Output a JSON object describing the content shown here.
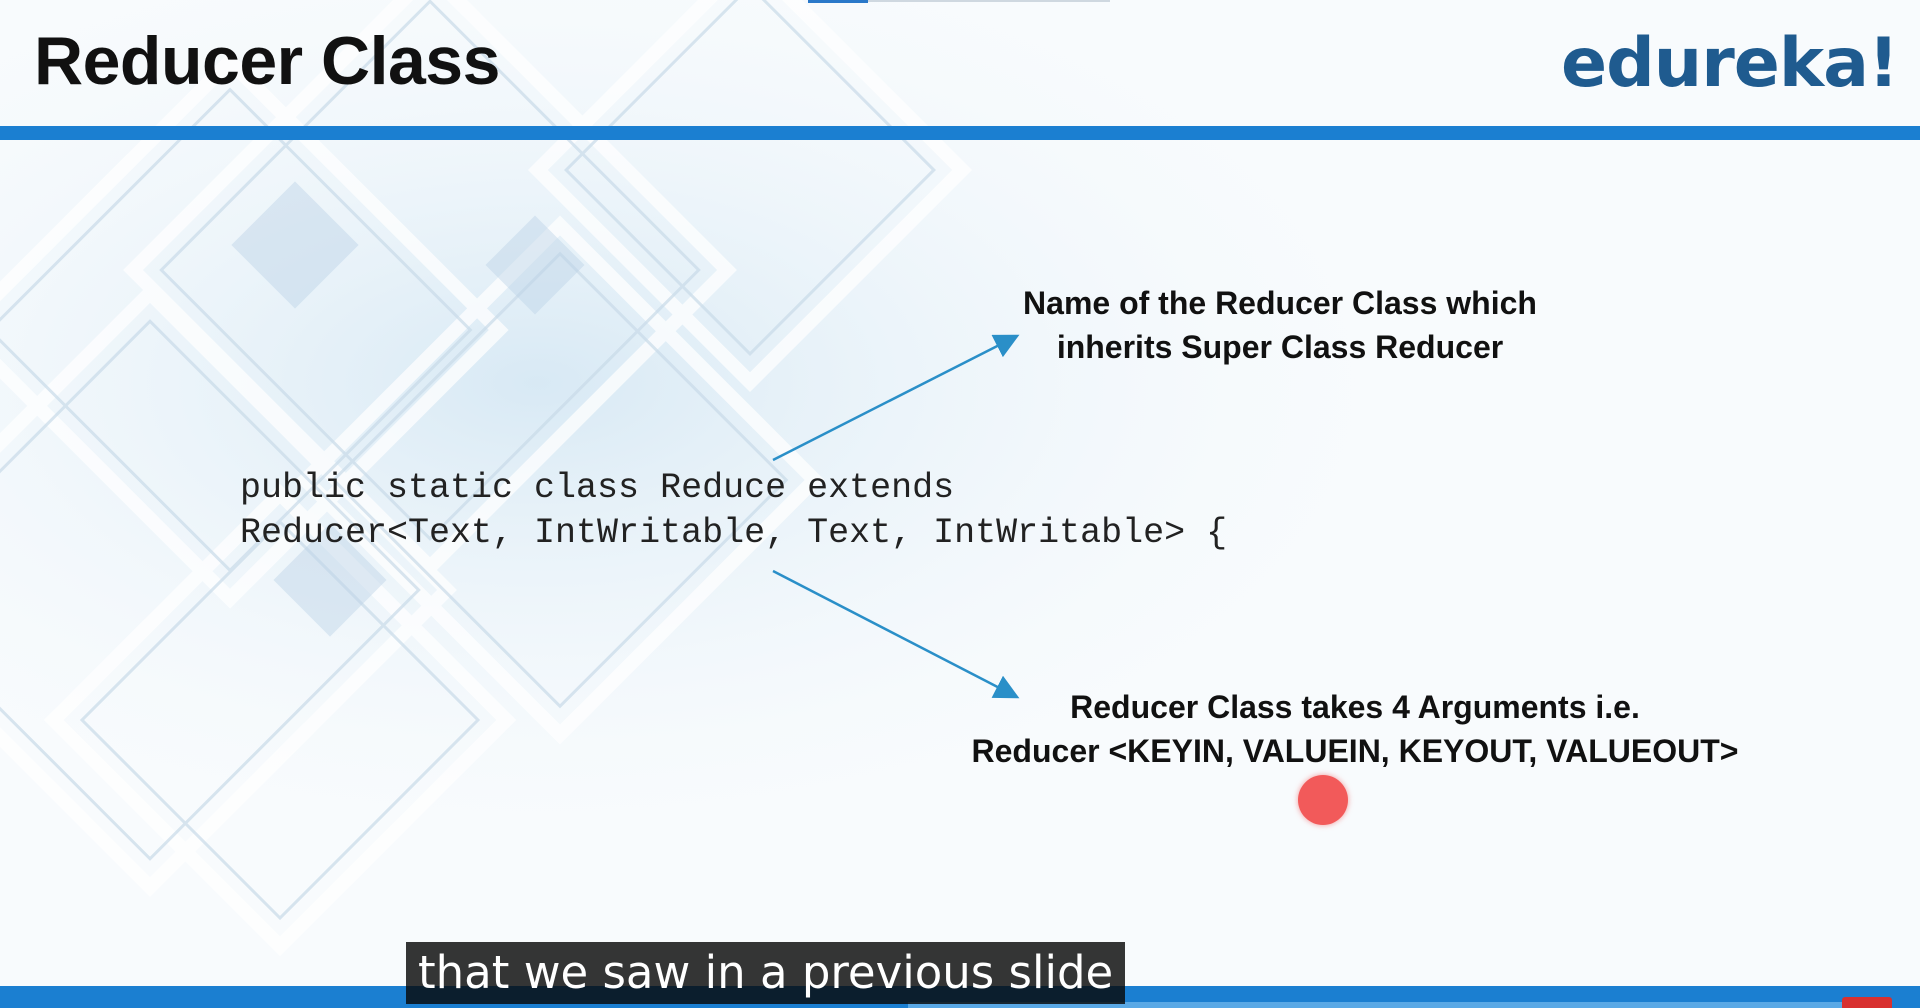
{
  "slide": {
    "title": "Reducer Class",
    "logo": "edureka!",
    "code_line1": "public static class Reduce extends",
    "code_line2": "Reducer<Text, IntWritable, Text, IntWritable> {",
    "annotation_top_line1": "Name of the Reducer Class which",
    "annotation_top_line2": "inherits Super Class Reducer",
    "annotation_bottom_line1": "Reducer Class takes 4 Arguments i.e.",
    "annotation_bottom_line2": "Reducer <KEYIN, VALUEIN, KEYOUT, VALUEOUT>"
  },
  "player": {
    "caption": "that we saw in a previous slide"
  },
  "colors": {
    "accent_bar": "#1b7fd1",
    "logo": "#1f5b8f",
    "arrow": "#2a8fc8",
    "pointer": "#f25a5a"
  }
}
